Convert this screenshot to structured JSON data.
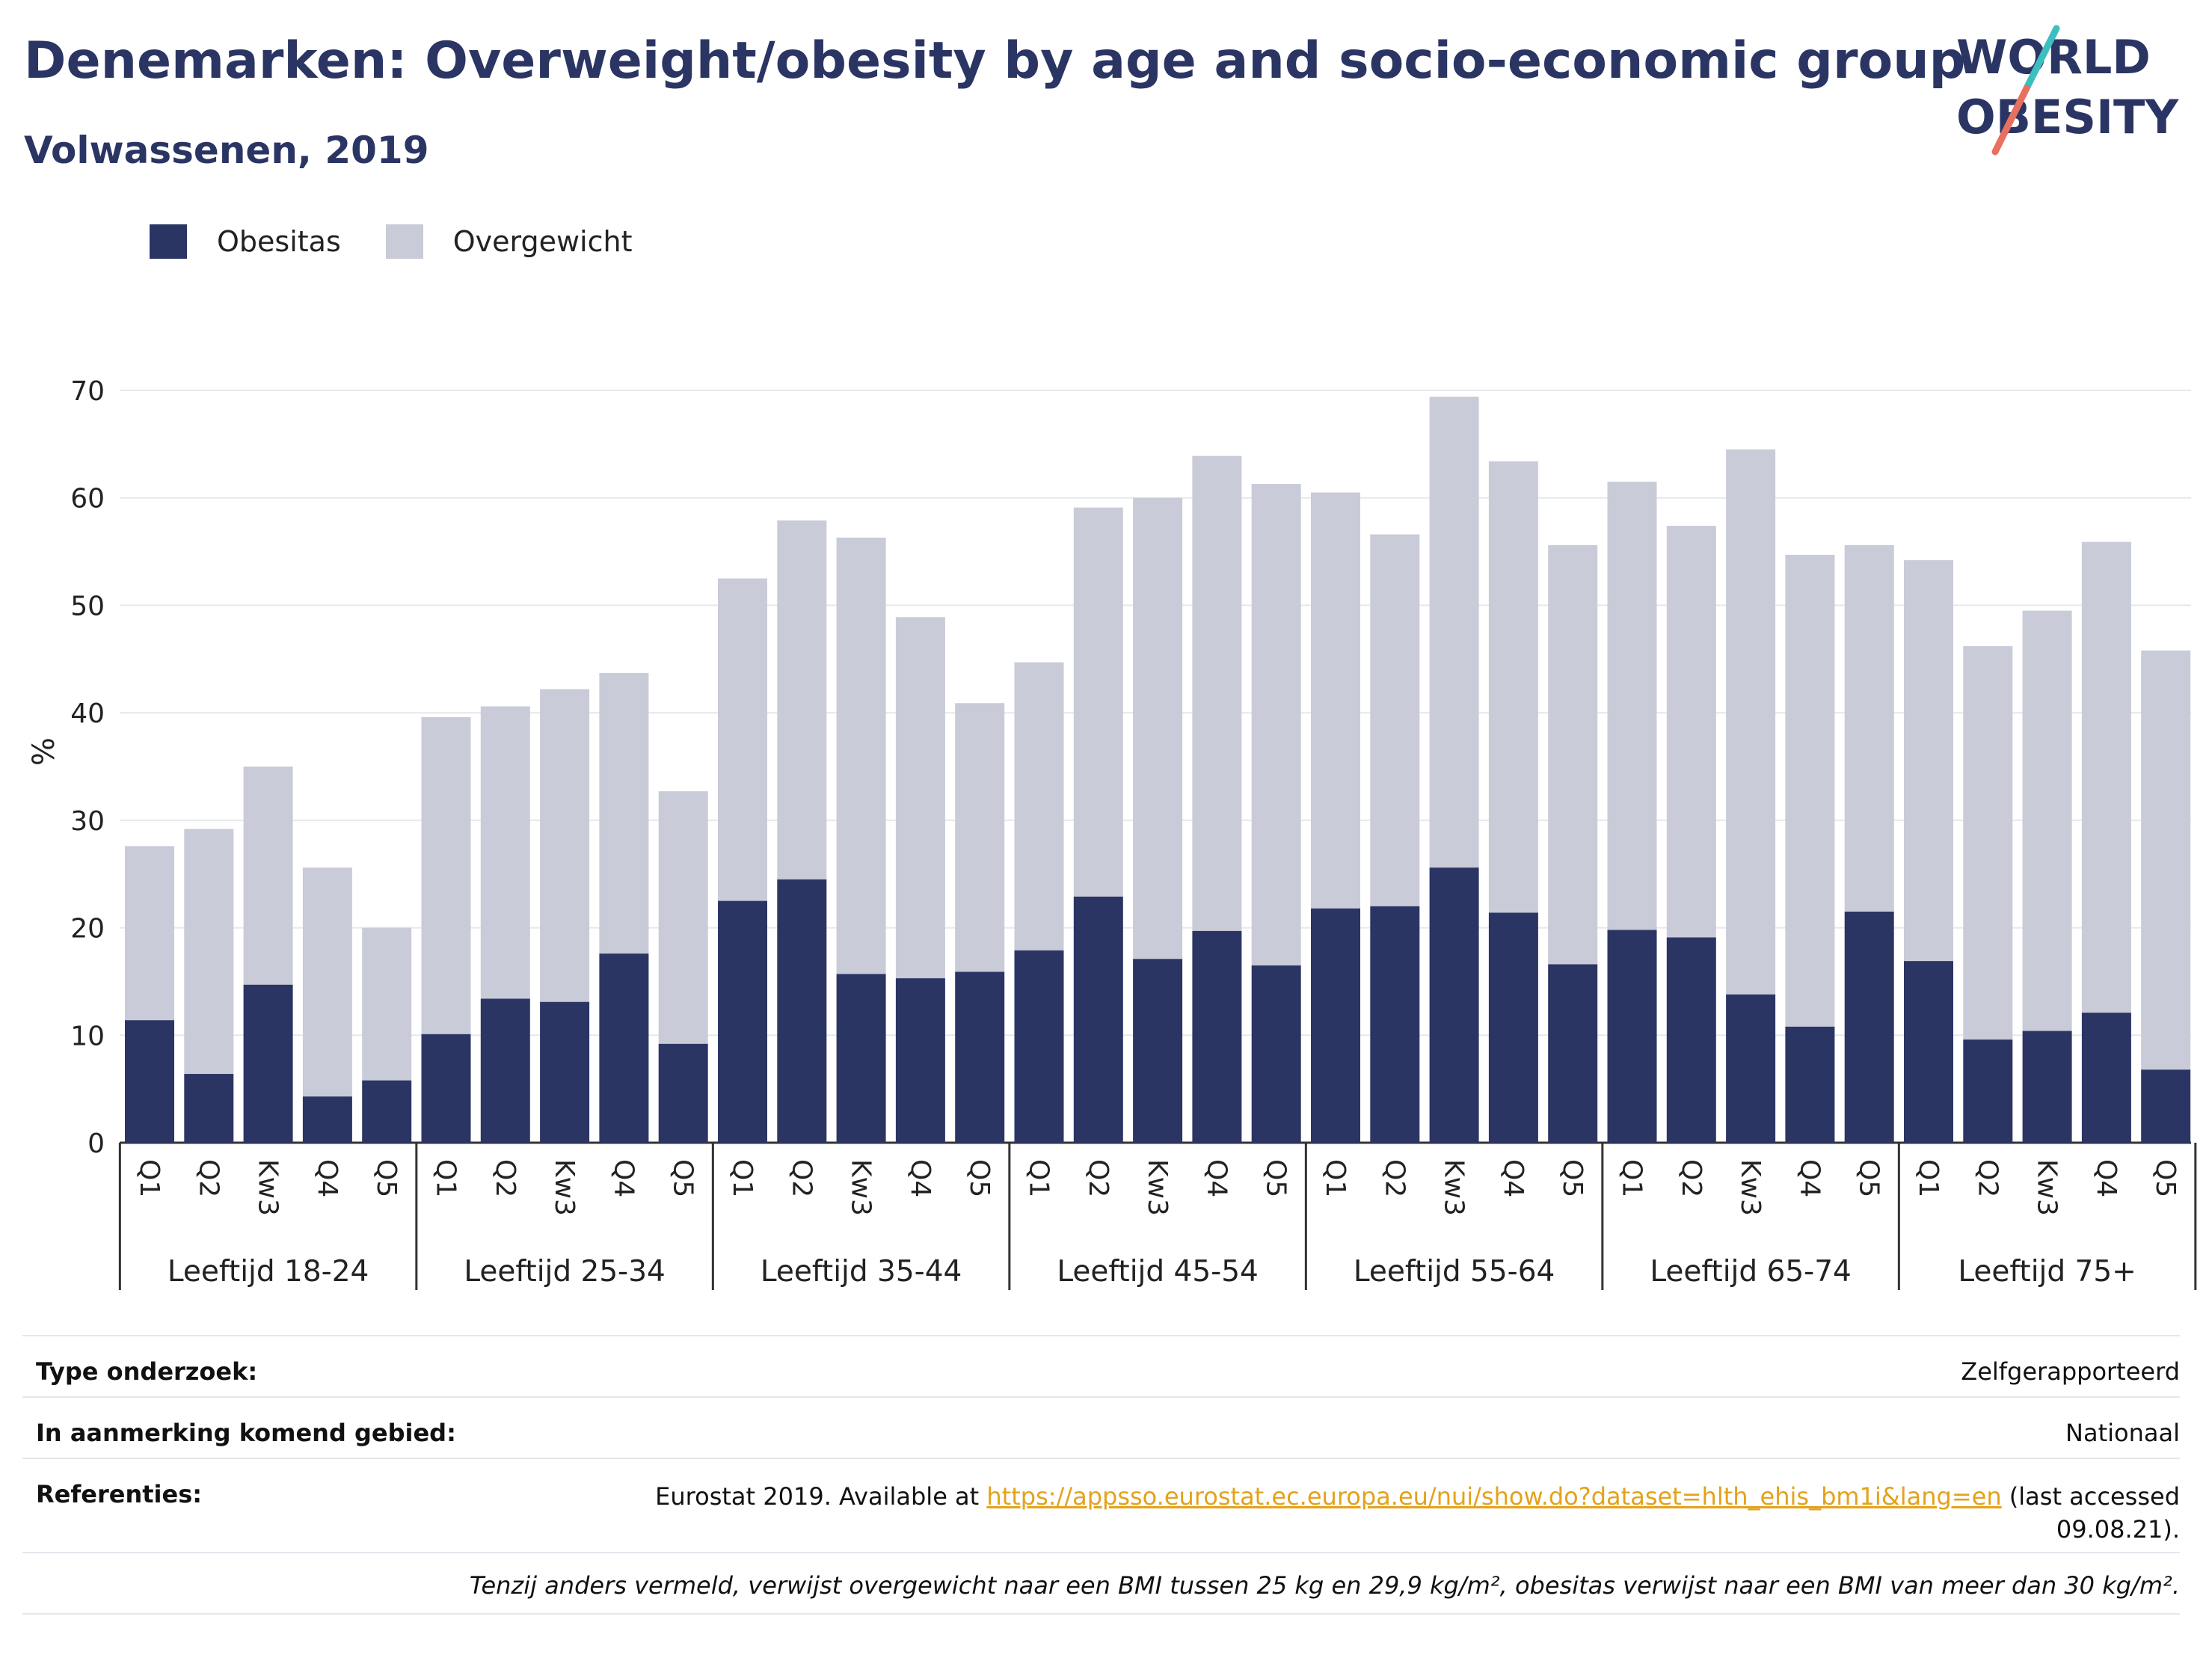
{
  "header": {
    "title": "Denemarken: Overweight/obesity by age and socio-economic group",
    "subtitle": "Volwassenen, 2019"
  },
  "logo": {
    "line1": "WORLD",
    "line2": "OBESITY"
  },
  "colors": {
    "obesitas": "#2b3564",
    "overgewicht": "#c9cbd8",
    "accent_teal": "#3dbfbf",
    "accent_coral": "#e8705e"
  },
  "chart_data": {
    "type": "bar",
    "stacked": true,
    "ylabel": "%",
    "ylim": [
      0,
      70
    ],
    "yticks": [
      0,
      10,
      20,
      30,
      40,
      50,
      60,
      70
    ],
    "grid": true,
    "legend_position": "top-left",
    "groups": [
      {
        "label": "Leeftijd 18-24",
        "categories": [
          "Q1",
          "Q2",
          "Kw3",
          "Q4",
          "Q5"
        ]
      },
      {
        "label": "Leeftijd 25-34",
        "categories": [
          "Q1",
          "Q2",
          "Kw3",
          "Q4",
          "Q5"
        ]
      },
      {
        "label": "Leeftijd 35-44",
        "categories": [
          "Q1",
          "Q2",
          "Kw3",
          "Q4",
          "Q5"
        ]
      },
      {
        "label": "Leeftijd 45-54",
        "categories": [
          "Q1",
          "Q2",
          "Kw3",
          "Q4",
          "Q5"
        ]
      },
      {
        "label": "Leeftijd 55-64",
        "categories": [
          "Q1",
          "Q2",
          "Kw3",
          "Q4",
          "Q5"
        ]
      },
      {
        "label": "Leeftijd 65-74",
        "categories": [
          "Q1",
          "Q2",
          "Kw3",
          "Q4",
          "Q5"
        ]
      },
      {
        "label": "Leeftijd 75+",
        "categories": [
          "Q1",
          "Q2",
          "Kw3",
          "Q4",
          "Q5"
        ]
      }
    ],
    "series": [
      {
        "name": "Obesitas",
        "color": "#2b3564",
        "values": [
          11.4,
          6.4,
          14.7,
          4.3,
          5.8,
          10.1,
          13.4,
          13.1,
          17.6,
          9.2,
          22.5,
          24.5,
          15.7,
          15.3,
          15.9,
          17.9,
          22.9,
          17.1,
          19.7,
          16.5,
          21.8,
          22.0,
          25.6,
          21.4,
          16.6,
          19.8,
          19.1,
          13.8,
          10.8,
          21.5,
          16.9,
          9.6,
          10.4,
          12.1,
          6.8
        ]
      },
      {
        "name": "Overgewicht",
        "color": "#c9cbd8",
        "values": [
          16.2,
          22.8,
          20.3,
          21.3,
          14.2,
          29.5,
          27.2,
          29.1,
          26.1,
          23.5,
          30.0,
          33.4,
          40.6,
          33.6,
          25.0,
          26.8,
          36.2,
          42.9,
          44.2,
          44.8,
          38.7,
          34.6,
          43.8,
          42.0,
          39.0,
          41.7,
          38.3,
          50.7,
          43.9,
          34.1,
          37.3,
          36.6,
          39.1,
          43.8,
          39.0
        ]
      }
    ]
  },
  "info": {
    "type_label": "Type onderzoek:",
    "type_value": "Zelfgerapporteerd",
    "area_label": "In aanmerking komend gebied:",
    "area_value": "Nationaal",
    "ref_label": "Referenties:",
    "ref_prefix": "Eurostat 2019. Available at ",
    "ref_link": "https://appsso.eurostat.ec.europa.eu/nui/show.do?dataset=hlth_ehis_bm1i&lang=en",
    "ref_suffix": " (last accessed",
    "ref_date": "09.08.21).",
    "footnote": "Tenzij anders vermeld, verwijst overgewicht naar een BMI tussen 25 kg en 29,9 kg/m², obesitas verwijst naar een BMI van meer dan 30 kg/m²."
  }
}
